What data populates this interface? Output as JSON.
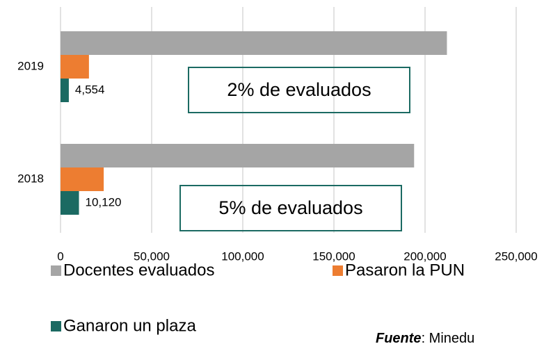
{
  "chart_data": {
    "type": "hbar",
    "categories": [
      "2019",
      "2018"
    ],
    "series": [
      {
        "name": "Docentes evaluados",
        "color": "#a5a5a5",
        "values": [
          212000,
          194000
        ]
      },
      {
        "name": "Pasaron la PUN",
        "color": "#ed7d31",
        "values": [
          15600,
          23700
        ]
      },
      {
        "name": "Ganaron un plaza",
        "color": "#1b6a62",
        "values": [
          4554,
          10120
        ],
        "value_labels": [
          "4,554",
          "10,120"
        ]
      }
    ],
    "xlim": [
      0,
      250000
    ],
    "xticks": [
      0,
      {
        "value": 50000,
        "label": "50,000"
      },
      {
        "value": 100000,
        "label": "100,000"
      },
      {
        "value": 150000,
        "label": "150,000"
      },
      {
        "value": 200000,
        "label": "200,000"
      },
      {
        "value": 250000,
        "label": "250,000"
      }
    ],
    "grid": true,
    "annotations": [
      "2% de evaluados",
      "5% de evaluados"
    ],
    "source": {
      "label": "Fuente",
      "text": ": Minedu"
    }
  }
}
